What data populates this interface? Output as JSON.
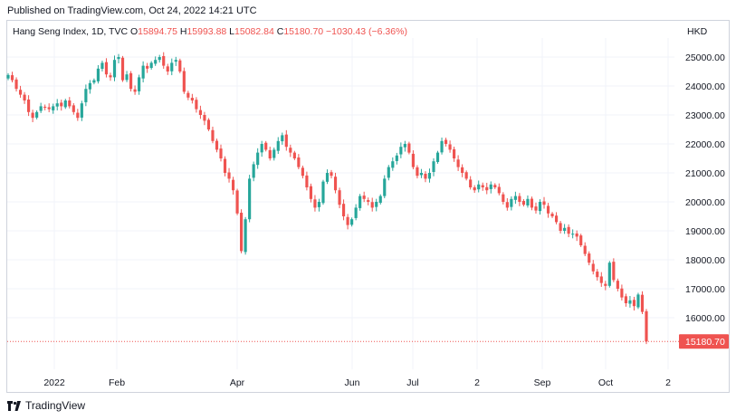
{
  "header": {
    "published": "Published on TradingView.com, Oct 24, 2022 14:21 UTC"
  },
  "legend": {
    "symbol": "Hang Seng Index, 1D, TVC",
    "open_label": "O",
    "open": "15894.75",
    "high_label": "H",
    "high": "15993.88",
    "low_label": "L",
    "low": "15082.84",
    "close_label": "C",
    "close": "15180.70",
    "change": "−1030.43 (−6.36%)"
  },
  "currency": "HKD",
  "footer": {
    "brand": "TradingView",
    "logo_icon": "tradingview-logo-icon"
  },
  "colors": {
    "up": "#26a69a",
    "down": "#ef5350",
    "grid": "#f0f3fa",
    "price_line": "#ef5350"
  },
  "chart_data": {
    "type": "candlestick",
    "ylim": [
      15000,
      25700
    ],
    "y_ticks": [
      "16000.00",
      "17000.00",
      "18000.00",
      "19000.00",
      "20000.00",
      "21000.00",
      "22000.00",
      "23000.00",
      "24000.00",
      "25000.00"
    ],
    "x_ticks": [
      "2022",
      "Feb",
      "Apr",
      "Jun",
      "Jul",
      "2",
      "Sep",
      "Oct",
      "2"
    ],
    "last_price": "15180.70",
    "series": [
      {
        "closes": [
          24380,
          24200,
          23900,
          23700,
          23500,
          23100,
          22900,
          23100,
          23300,
          23250,
          23200,
          23300,
          23400,
          23300,
          23500,
          23300,
          23100,
          22900,
          23400,
          23900,
          24100,
          24200,
          24600,
          24800,
          24400,
          24300,
          24900,
          25000,
          24200,
          24400,
          23900,
          23800,
          24300,
          24700,
          24600,
          24800,
          24900,
          25000,
          24700,
          24500,
          24800,
          24900,
          24500,
          23800,
          23600,
          23500,
          23200,
          23000,
          22800,
          22500,
          22100,
          21800,
          21500,
          21000,
          20800,
          20400,
          19600,
          18300,
          19400,
          20800,
          21300,
          21700,
          22000,
          21800,
          21500,
          21800,
          22100,
          22300,
          21900,
          21700,
          21500,
          21200,
          20900,
          20500,
          20100,
          19800,
          20000,
          20700,
          21000,
          20900,
          20400,
          19900,
          19500,
          19200,
          19400,
          19800,
          20200,
          20100,
          20000,
          19800,
          20000,
          20200,
          20800,
          21200,
          21400,
          21600,
          21900,
          22000,
          21700,
          21200,
          20900,
          21000,
          20800,
          21000,
          21400,
          21700,
          22100,
          22000,
          21800,
          21500,
          21200,
          21000,
          20800,
          20500,
          20400,
          20600,
          20500,
          20400,
          20600,
          20500,
          20300,
          20000,
          19800,
          20100,
          20200,
          20000,
          19900,
          20100,
          19800,
          19700,
          20000,
          19900,
          19600,
          19500,
          19300,
          19000,
          19100,
          18900,
          18900,
          18800,
          18500,
          18200,
          17900,
          17600,
          17400,
          17200,
          17100,
          17900,
          17300,
          17000,
          16700,
          16500,
          16600,
          16400,
          16800,
          16200,
          15180
        ]
      }
    ]
  }
}
